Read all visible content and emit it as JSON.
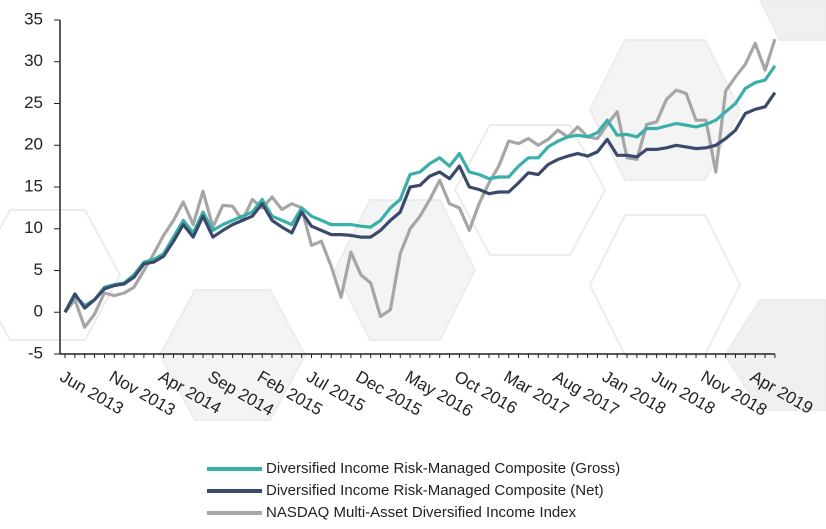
{
  "chart_data": {
    "type": "line",
    "categories": [
      "Jun 2013",
      null,
      null,
      null,
      null,
      "Nov 2013",
      null,
      null,
      null,
      null,
      "Apr 2014",
      null,
      null,
      null,
      null,
      "Sep 2014",
      null,
      null,
      null,
      null,
      "Feb 2015",
      null,
      null,
      null,
      null,
      "Jul 2015",
      null,
      null,
      null,
      null,
      "Dec 2015",
      null,
      null,
      null,
      null,
      "May 2016",
      null,
      null,
      null,
      null,
      "Oct 2016",
      null,
      null,
      null,
      null,
      "Mar 2017",
      null,
      null,
      null,
      null,
      "Aug 2017",
      null,
      null,
      null,
      null,
      "Jan 2018",
      null,
      null,
      null,
      null,
      "Jun 2018",
      null,
      null,
      null,
      null,
      "Nov 2018",
      null,
      null,
      null,
      null,
      "Apr 2019",
      null,
      null
    ],
    "series": [
      {
        "name": "Diversified Income Risk-Managed Composite (Gross)",
        "color": "#3aafa9",
        "values": [
          0,
          2,
          0.8,
          1.5,
          3,
          3.3,
          3.5,
          4.5,
          6,
          6.3,
          7,
          9,
          11,
          9.5,
          12,
          9.8,
          10.5,
          11,
          11.5,
          12,
          13.5,
          11.5,
          11,
          10.5,
          12.5,
          11.5,
          11,
          10.5,
          10.5,
          10.5,
          10.3,
          10.2,
          11,
          12.5,
          13.5,
          16.5,
          16.8,
          17.8,
          18.5,
          17.5,
          19,
          16.8,
          16.5,
          16,
          16.2,
          16.2,
          17.5,
          18.5,
          18.5,
          19.8,
          20.5,
          21,
          21.2,
          21,
          21.5,
          23,
          21.2,
          21.3,
          21,
          22,
          22,
          22.3,
          22.6,
          22.4,
          22.2,
          22.5,
          23,
          24,
          25,
          26.8,
          27.5,
          27.8,
          29.5
        ]
      },
      {
        "name": "Diversified Income Risk-Managed Composite (Net)",
        "color": "#3b4a6b",
        "values": [
          0,
          2.2,
          0.5,
          1.5,
          2.8,
          3.2,
          3.4,
          4.2,
          5.8,
          6,
          6.7,
          8.5,
          10.5,
          9,
          11.5,
          9,
          9.8,
          10.5,
          11,
          11.5,
          13,
          11,
          10.2,
          9.5,
          12,
          10.3,
          9.8,
          9.3,
          9.3,
          9.2,
          9,
          9,
          9.8,
          11,
          12,
          15,
          15.2,
          16.3,
          16.8,
          16,
          17.5,
          15,
          14.7,
          14.2,
          14.4,
          14.4,
          15.5,
          16.7,
          16.5,
          17.7,
          18.3,
          18.7,
          19,
          18.7,
          19.2,
          20.7,
          18.8,
          18.8,
          18.6,
          19.5,
          19.5,
          19.7,
          20,
          19.8,
          19.6,
          19.7,
          20,
          20.8,
          21.8,
          23.8,
          24.3,
          24.6,
          26.3
        ]
      },
      {
        "name": "NASDAQ Multi-Asset Diversified Income Index",
        "color": "#a6a6a6",
        "values": [
          0,
          1.5,
          -1.8,
          -0.2,
          2.3,
          2,
          2.3,
          3,
          5,
          7,
          9.2,
          11,
          13.2,
          10.5,
          14.5,
          10.2,
          12.8,
          12.7,
          11,
          13.5,
          12.5,
          13.8,
          12.3,
          13,
          12.5,
          8,
          8.5,
          5.5,
          1.8,
          7.2,
          4.5,
          3.5,
          -0.5,
          0.3,
          7,
          10,
          11.5,
          13.5,
          15.8,
          13,
          12.5,
          9.8,
          13,
          15.5,
          17.5,
          20.5,
          20.2,
          20.8,
          20,
          20.7,
          21.8,
          21,
          22.2,
          21,
          20.8,
          22.5,
          24,
          18.5,
          18.3,
          22.5,
          22.8,
          25.5,
          26.6,
          26.2,
          23,
          23,
          16.8,
          26.5,
          28.2,
          29.7,
          32.2,
          29,
          32.7
        ]
      }
    ],
    "ylim": [
      -5,
      35
    ],
    "yticks": [
      -5,
      0,
      5,
      10,
      15,
      20,
      25,
      30,
      35
    ],
    "grid": false
  }
}
